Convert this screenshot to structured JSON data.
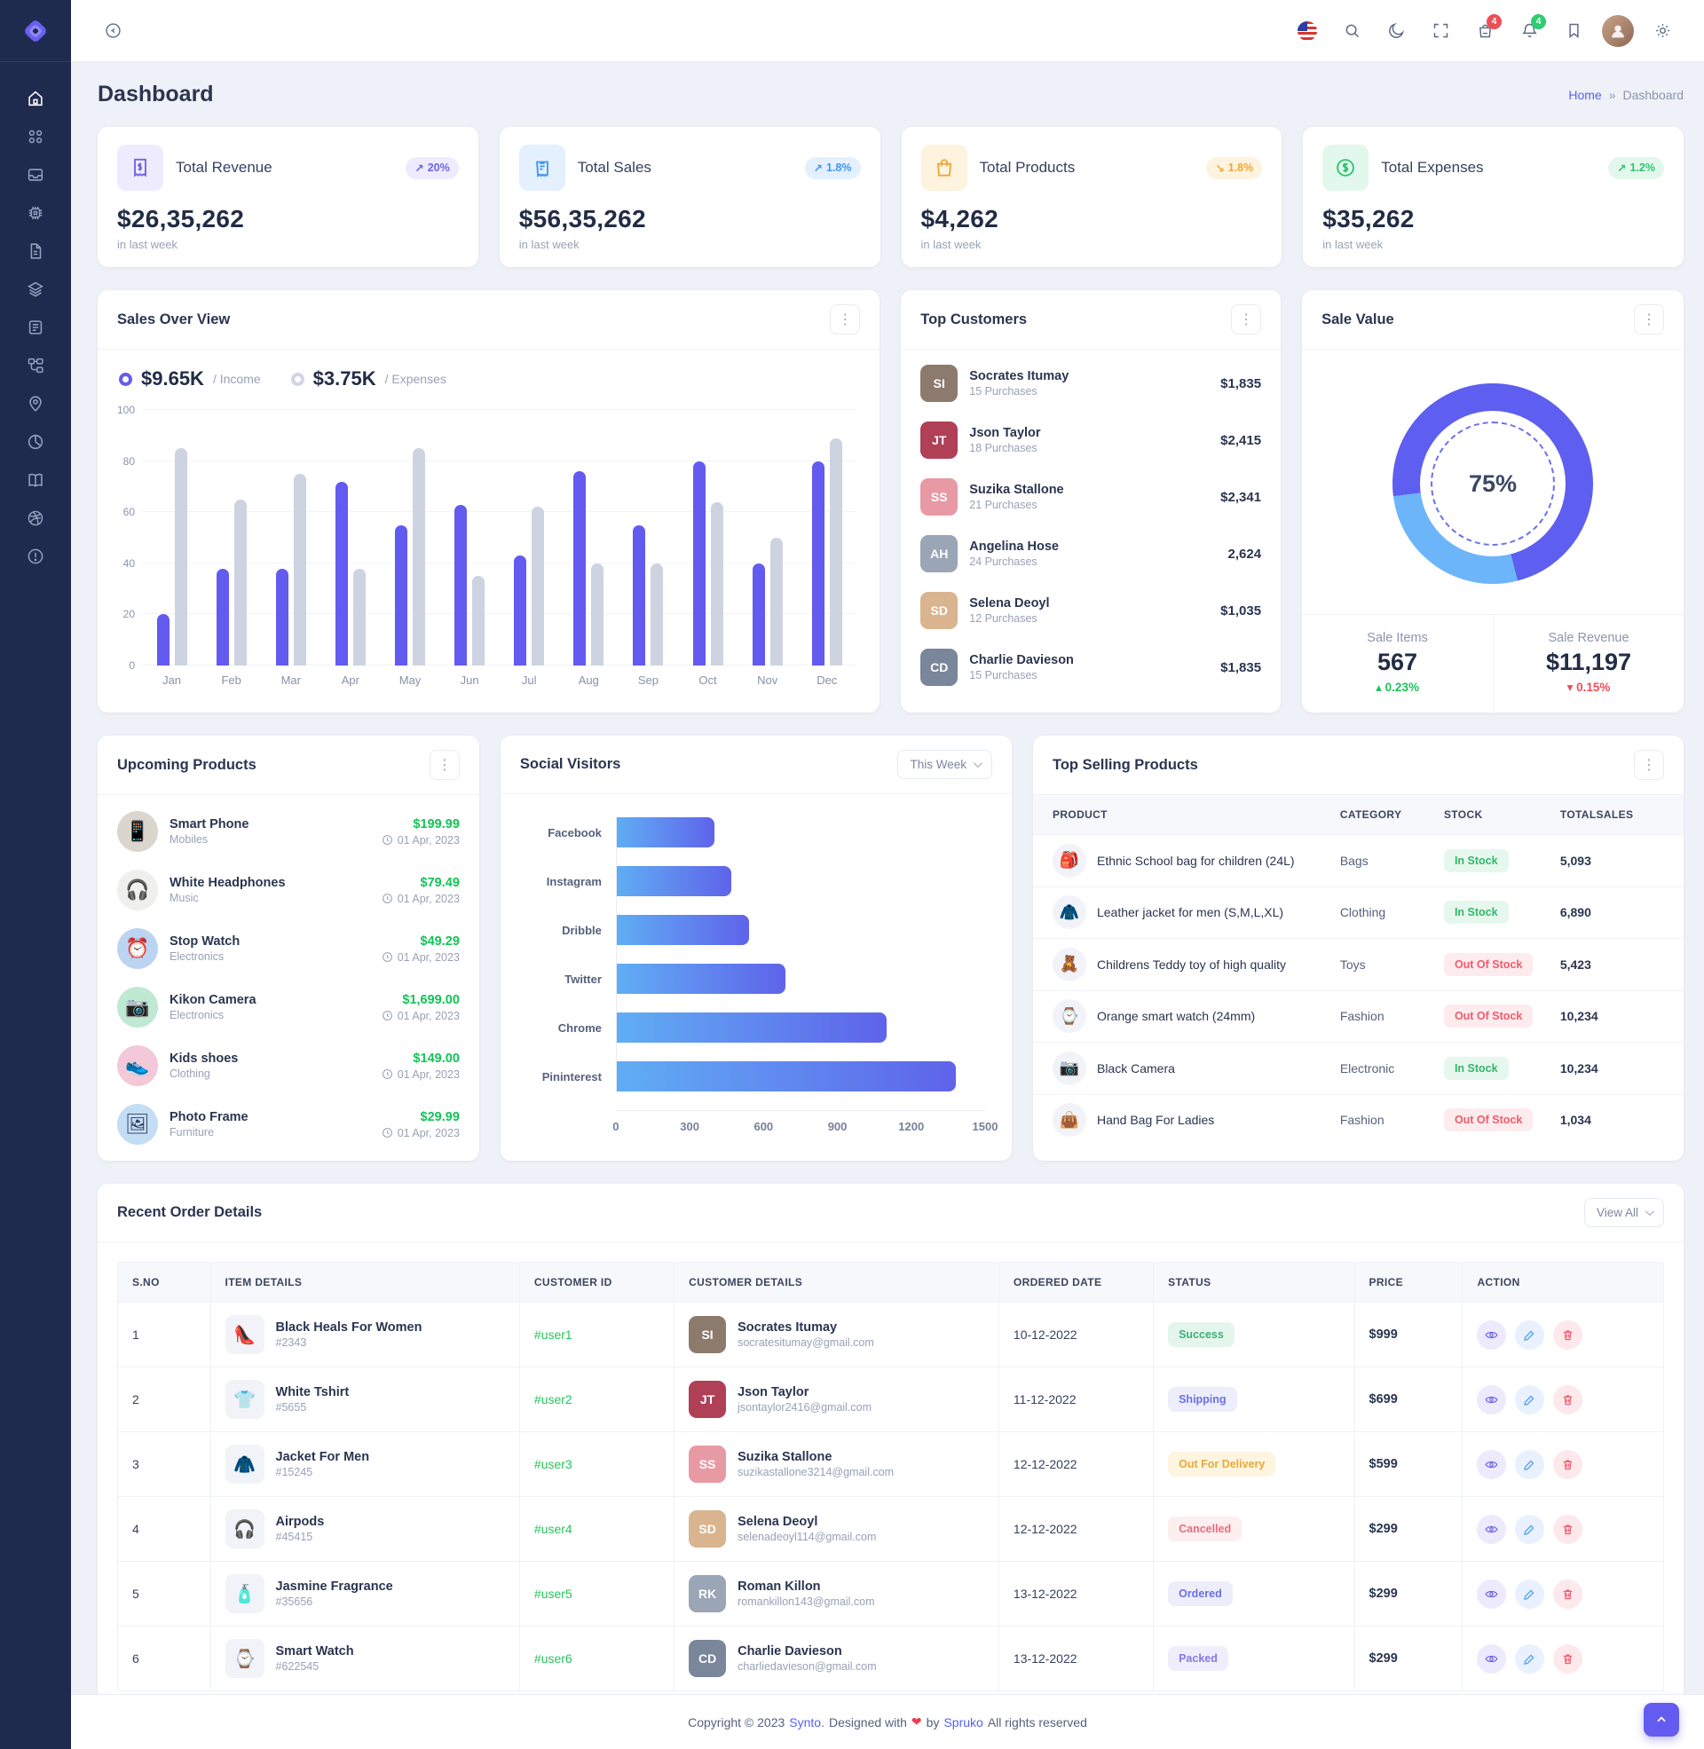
{
  "topbar": {
    "cart_badge": "4",
    "bell_badge": "4"
  },
  "sidebar": {
    "items": [
      "home",
      "apps",
      "inbox",
      "cpu",
      "file",
      "layers",
      "news",
      "tree",
      "location",
      "pie",
      "book",
      "dribbble",
      "alert"
    ]
  },
  "page": {
    "title": "Dashboard",
    "breadcrumb_home": "Home",
    "breadcrumb_sep": "»",
    "breadcrumb_current": "Dashboard"
  },
  "stats": [
    {
      "title": "Total Revenue",
      "value": "$26,35,262",
      "caption": "in last week",
      "arrow": "↗",
      "change": "20%"
    },
    {
      "title": "Total Sales",
      "value": "$56,35,262",
      "caption": "in last week",
      "arrow": "↗",
      "change": "1.8%"
    },
    {
      "title": "Total Products",
      "value": "$4,262",
      "caption": "in last week",
      "arrow": "↘",
      "change": "1.8%"
    },
    {
      "title": "Total Expenses",
      "value": "$35,262",
      "caption": "in last week",
      "arrow": "↗",
      "change": "1.2%"
    }
  ],
  "sales_overview": {
    "title": "Sales Over View",
    "legend": [
      {
        "value": "$9.65K",
        "label": "/ Income"
      },
      {
        "value": "$3.75K",
        "label": "/ Expenses"
      }
    ]
  },
  "chart_data": [
    {
      "id": "sales_over_view",
      "type": "bar",
      "title": "Sales Over View",
      "categories": [
        "Jan",
        "Feb",
        "Mar",
        "Apr",
        "May",
        "Jun",
        "Jul",
        "Aug",
        "Sep",
        "Oct",
        "Nov",
        "Dec"
      ],
      "series": [
        {
          "name": "Income",
          "color": "#635bf0",
          "values": [
            20,
            38,
            38,
            72,
            55,
            63,
            43,
            76,
            55,
            80,
            40,
            80
          ]
        },
        {
          "name": "Expenses",
          "color": "#cdd3e0",
          "values": [
            85,
            65,
            75,
            38,
            85,
            35,
            62,
            40,
            40,
            64,
            50,
            89
          ]
        }
      ],
      "ylim": [
        0,
        100
      ],
      "yticks": [
        0,
        20,
        40,
        60,
        80,
        100
      ],
      "grid": true,
      "legend_position": "top"
    },
    {
      "id": "social_visitors",
      "type": "bar-horizontal",
      "title": "Social Visitors",
      "categories": [
        "Facebook",
        "Instagram",
        "Dribble",
        "Twitter",
        "Chrome",
        "Pininterest"
      ],
      "values": [
        400,
        470,
        540,
        690,
        1100,
        1380
      ],
      "xlim": [
        0,
        1500
      ],
      "xticks": [
        0,
        300,
        600,
        900,
        1200,
        1500
      ]
    },
    {
      "id": "sale_value",
      "type": "donut",
      "title": "Sale Value",
      "center_label": "75%",
      "percent": 75,
      "segments": [
        {
          "color": "#5e5ef0",
          "from": 0,
          "to": 46
        },
        {
          "color": "#6cb5f9",
          "from": 46,
          "to": 73
        },
        {
          "color": "#5e5ef0",
          "from": 73,
          "to": 100
        }
      ]
    }
  ],
  "top_customers": {
    "title": "Top Customers",
    "items": [
      {
        "name": "Socrates Itumay",
        "purchases": "15 Purchases",
        "amount": "$1,835",
        "initials": "SI",
        "avatar_bg": "#8c7b6d"
      },
      {
        "name": "Json Taylor",
        "purchases": "18 Purchases",
        "amount": "$2,415",
        "initials": "JT",
        "avatar_bg": "#b04055"
      },
      {
        "name": "Suzika Stallone",
        "purchases": "21 Purchases",
        "amount": "$2,341",
        "initials": "SS",
        "avatar_bg": "#e89aa4"
      },
      {
        "name": "Angelina Hose",
        "purchases": "24 Purchases",
        "amount": "2,624",
        "initials": "AH",
        "avatar_bg": "#9aa5b5"
      },
      {
        "name": "Selena Deoyl",
        "purchases": "12 Purchases",
        "amount": "$1,035",
        "initials": "SD",
        "avatar_bg": "#d9b48f"
      },
      {
        "name": "Charlie Davieson",
        "purchases": "15 Purchases",
        "amount": "$1,835",
        "initials": "CD",
        "avatar_bg": "#7a8699"
      }
    ]
  },
  "sale_value": {
    "title": "Sale Value",
    "items_label": "Sale Items",
    "items_value": "567",
    "items_arrow": "▴",
    "items_change": "0.23%",
    "revenue_label": "Sale Revenue",
    "revenue_value": "$11,197",
    "revenue_arrow": "▾",
    "revenue_change": "0.15%"
  },
  "upcoming_products": {
    "title": "Upcoming Products",
    "items": [
      {
        "name": "Smart Phone",
        "category": "Mobiles",
        "price": "$199.99",
        "date": "01 Apr, 2023",
        "emoji": "📱",
        "bg": "#dad5cd"
      },
      {
        "name": "White Headphones",
        "category": "Music",
        "price": "$79.49",
        "date": "01 Apr, 2023",
        "emoji": "🎧",
        "bg": "#efefed"
      },
      {
        "name": "Stop Watch",
        "category": "Electronics",
        "price": "$49.29",
        "date": "01 Apr, 2023",
        "emoji": "⏰",
        "bg": "#bcd4f2"
      },
      {
        "name": "Kikon Camera",
        "category": "Electronics",
        "price": "$1,699.00",
        "date": "01 Apr, 2023",
        "emoji": "📷",
        "bg": "#bfe9d2"
      },
      {
        "name": "Kids shoes",
        "category": "Clothing",
        "price": "$149.00",
        "date": "01 Apr, 2023",
        "emoji": "👟",
        "bg": "#f3c8d8"
      },
      {
        "name": "Photo Frame",
        "category": "Furniture",
        "price": "$29.99",
        "date": "01 Apr, 2023",
        "emoji": "🖼",
        "bg": "#c3ddf4"
      }
    ]
  },
  "social_visitors": {
    "title": "Social Visitors",
    "filter_label": "This Week"
  },
  "top_selling": {
    "title": "Top Selling Products",
    "headers": [
      "PRODUCT",
      "CATEGORY",
      "STOCK",
      "TOTALSALES"
    ],
    "rows": [
      {
        "product": "Ethnic School bag for children (24L)",
        "category": "Bags",
        "stock": "In Stock",
        "stock_type": "in",
        "sales": "5,093",
        "emoji": "🎒"
      },
      {
        "product": "Leather jacket for men (S,M,L,XL)",
        "category": "Clothing",
        "stock": "In Stock",
        "stock_type": "in",
        "sales": "6,890",
        "emoji": "🧥"
      },
      {
        "product": "Childrens Teddy toy of high quality",
        "category": "Toys",
        "stock": "Out Of Stock",
        "stock_type": "out",
        "sales": "5,423",
        "emoji": "🧸"
      },
      {
        "product": "Orange smart watch (24mm)",
        "category": "Fashion",
        "stock": "Out Of Stock",
        "stock_type": "out",
        "sales": "10,234",
        "emoji": "⌚"
      },
      {
        "product": "Black Camera",
        "category": "Electronic",
        "stock": "In Stock",
        "stock_type": "in",
        "sales": "10,234",
        "emoji": "📷"
      },
      {
        "product": "Hand Bag For Ladies",
        "category": "Fashion",
        "stock": "Out Of Stock",
        "stock_type": "out",
        "sales": "1,034",
        "emoji": "👜"
      }
    ]
  },
  "recent_orders": {
    "title": "Recent Order Details",
    "view_all": "View All",
    "headers": [
      "S.NO",
      "ITEM DETAILS",
      "CUSTOMER ID",
      "CUSTOMER DETAILS",
      "ORDERED DATE",
      "STATUS",
      "PRICE",
      "ACTION"
    ],
    "rows": [
      {
        "sno": "1",
        "item": "Black Heals For Women",
        "code": "#2343",
        "emoji": "👠",
        "user_id": "#user1",
        "customer": "Socrates Itumay",
        "email": "socratesitumay@gmail.com",
        "initials": "SI",
        "avatar_bg": "#8c7b6d",
        "date": "10-12-2022",
        "status": "Success",
        "status_type": "success",
        "price": "$999"
      },
      {
        "sno": "2",
        "item": "White Tshirt",
        "code": "#5655",
        "emoji": "👕",
        "user_id": "#user2",
        "customer": "Json Taylor",
        "email": "jsontaylor2416@gmail.com",
        "initials": "JT",
        "avatar_bg": "#b04055",
        "date": "11-12-2022",
        "status": "Shipping",
        "status_type": "info",
        "price": "$699"
      },
      {
        "sno": "3",
        "item": "Jacket For Men",
        "code": "#15245",
        "emoji": "🧥",
        "user_id": "#user3",
        "customer": "Suzika Stallone",
        "email": "suzikastallone3214@gmail.com",
        "initials": "SS",
        "avatar_bg": "#e89aa4",
        "date": "12-12-2022",
        "status": "Out For Delivery",
        "status_type": "warning",
        "price": "$599"
      },
      {
        "sno": "4",
        "item": "Airpods",
        "code": "#45415",
        "emoji": "🎧",
        "user_id": "#user4",
        "customer": "Selena Deoyl",
        "email": "selenadeoyl114@gmail.com",
        "initials": "SD",
        "avatar_bg": "#d9b48f",
        "date": "12-12-2022",
        "status": "Cancelled",
        "status_type": "danger",
        "price": "$299"
      },
      {
        "sno": "5",
        "item": "Jasmine Fragrance",
        "code": "#35656",
        "emoji": "🧴",
        "user_id": "#user5",
        "customer": "Roman Killon",
        "email": "romankillon143@gmail.com",
        "initials": "RK",
        "avatar_bg": "#9aa5b5",
        "date": "13-12-2022",
        "status": "Ordered",
        "status_type": "info",
        "price": "$299"
      },
      {
        "sno": "6",
        "item": "Smart Watch",
        "code": "#622545",
        "emoji": "⌚",
        "user_id": "#user6",
        "customer": "Charlie Davieson",
        "email": "charliedavieson@gmail.com",
        "initials": "CD",
        "avatar_bg": "#7a8699",
        "date": "13-12-2022",
        "status": "Packed",
        "status_type": "violet",
        "price": "$299"
      }
    ]
  },
  "footer": {
    "prefix": "Copyright © 2023",
    "brand": "Synto.",
    "mid": "Designed with",
    "heart": "❤",
    "by": "by",
    "brand2": "Spruko",
    "suffix": "All rights reserved"
  }
}
